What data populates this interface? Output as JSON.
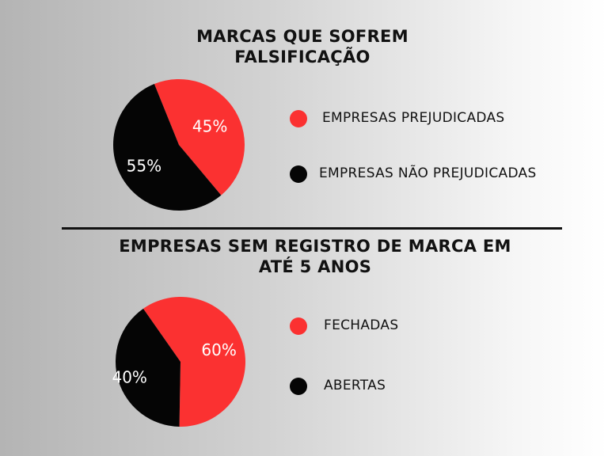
{
  "colors": {
    "red": "#fb3131",
    "black": "#050505",
    "label_on_red": "#ffffff",
    "label_on_black": "#ffffff"
  },
  "chart_data": [
    {
      "type": "pie",
      "title_lines": [
        "MARCAS QUE SOFREM",
        "FALSIFICAÇÃO"
      ],
      "slices": [
        {
          "label": "EMPRESAS PREJUDICADAS",
          "value": 45,
          "value_label": "45%",
          "color": "#fb3131"
        },
        {
          "label": "EMPRESAS NÃO PREJUDICADAS",
          "value": 55,
          "value_label": "55%",
          "color": "#050505"
        }
      ],
      "start_angle_deg": -22,
      "legend_placement": "right"
    },
    {
      "type": "pie",
      "title_lines": [
        "EMPRESAS SEM REGISTRO DE MARCA EM",
        "ATÉ 5 ANOS"
      ],
      "slices": [
        {
          "label": "FECHADAS",
          "value": 60,
          "value_label": "60%",
          "color": "#fb3131"
        },
        {
          "label": "ABERTAS",
          "value": 40,
          "value_label": "40%",
          "color": "#050505"
        }
      ],
      "start_angle_deg": -35,
      "legend_placement": "right"
    }
  ]
}
